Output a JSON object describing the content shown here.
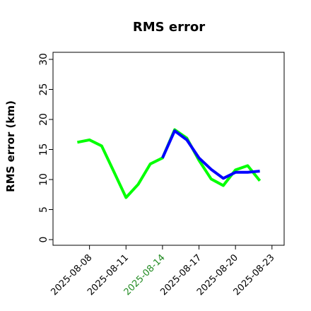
{
  "chart_data": {
    "type": "line",
    "title": "RMS error",
    "ylabel": "RMS error (km)",
    "xlabel": "",
    "ylim": [
      0,
      30
    ],
    "yticks": [
      0,
      5,
      10,
      15,
      20,
      25,
      30
    ],
    "xlim": [
      "2025-08-05",
      "2025-08-24"
    ],
    "x_ticks": [
      {
        "date": "2025-08-08",
        "label": "2025-08-08",
        "color": "#000000"
      },
      {
        "date": "2025-08-11",
        "label": "2025-08-11",
        "color": "#000000"
      },
      {
        "date": "2025-08-14",
        "label": "2025-08-14",
        "color": "#228b22"
      },
      {
        "date": "2025-08-17",
        "label": "2025-08-17",
        "color": "#000000"
      },
      {
        "date": "2025-08-20",
        "label": "2025-08-20",
        "color": "#000000"
      },
      {
        "date": "2025-08-23",
        "label": "2025-08-23",
        "color": "#000000"
      }
    ],
    "series": [
      {
        "color": "#00ff00",
        "x": [
          "2025-08-07",
          "2025-08-08",
          "2025-08-09",
          "2025-08-10",
          "2025-08-11",
          "2025-08-12",
          "2025-08-13",
          "2025-08-14",
          "2025-08-15",
          "2025-08-16",
          "2025-08-17",
          "2025-08-18",
          "2025-08-19",
          "2025-08-20",
          "2025-08-21",
          "2025-08-22"
        ],
        "values": [
          16.2,
          16.6,
          15.6,
          11.3,
          7.0,
          9.2,
          12.6,
          13.6,
          18.3,
          16.9,
          13.2,
          10.1,
          9.0,
          11.6,
          12.3,
          9.8
        ]
      },
      {
        "color": "#0000ff",
        "x": [
          "2025-08-14",
          "2025-08-15",
          "2025-08-16",
          "2025-08-17",
          "2025-08-18",
          "2025-08-19",
          "2025-08-20",
          "2025-08-21",
          "2025-08-22"
        ],
        "values": [
          13.6,
          18.1,
          16.6,
          13.6,
          11.7,
          10.2,
          11.2,
          11.2,
          11.4
        ]
      }
    ]
  }
}
